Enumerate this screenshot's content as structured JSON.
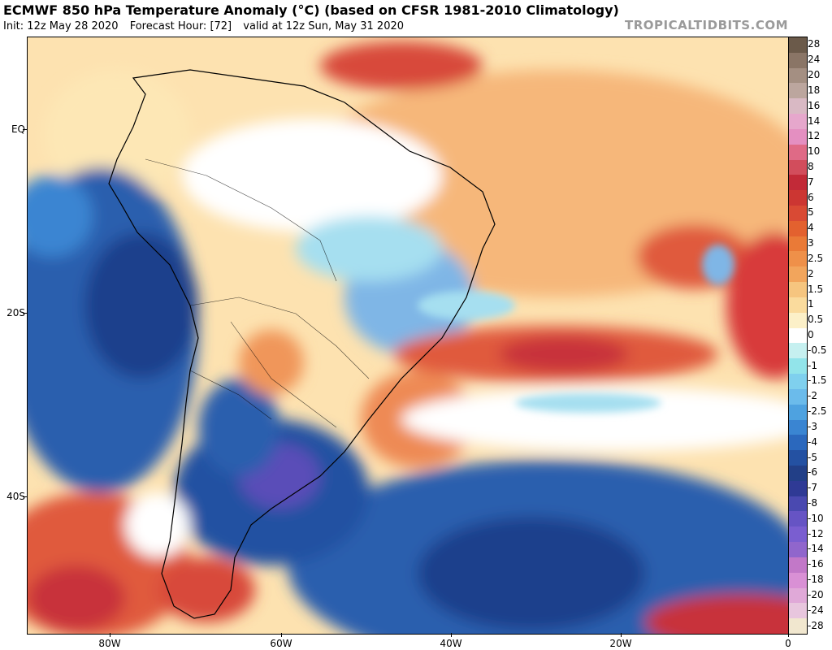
{
  "header": {
    "title": "ECMWF 850 hPa Temperature Anomaly (°C) (based on CFSR 1981-2010 Climatology)",
    "init": "Init: 12z May 28 2020",
    "forecast_hour": "Forecast Hour: [72]",
    "valid": "valid at 12z Sun, May 31 2020",
    "brand": "TROPICALTIDBITS.COM"
  },
  "axes": {
    "lat_labels": [
      "EQ",
      "20S",
      "40S"
    ],
    "lon_labels": [
      "80W",
      "60W",
      "40W",
      "20W",
      "0"
    ]
  },
  "colorbar": {
    "labels": [
      "28",
      "24",
      "20",
      "18",
      "16",
      "14",
      "12",
      "10",
      "8",
      "7",
      "6",
      "5",
      "4",
      "3",
      "2.5",
      "2",
      "1.5",
      "1",
      "0.5",
      "0",
      "-0.5",
      "-1",
      "-1.5",
      "-2",
      "-2.5",
      "-3",
      "-4",
      "-5",
      "-6",
      "-7",
      "-8",
      "-10",
      "-12",
      "-14",
      "-16",
      "-18",
      "-20",
      "-24",
      "-28"
    ],
    "colors": [
      "#6b5a4a",
      "#8a7566",
      "#a48f82",
      "#bca69e",
      "#d9b9c4",
      "#e6a7cc",
      "#e48fc1",
      "#df6a86",
      "#d24d5c",
      "#c22a38",
      "#cc3632",
      "#d94a34",
      "#e3612f",
      "#ea7a37",
      "#ef9049",
      "#f2a55c",
      "#f6c57f",
      "#fadb9d",
      "#fcf0c8",
      "#ffffff",
      "#c6f0f0",
      "#92e4ea",
      "#7fd0ee",
      "#6bbbeb",
      "#4ea2e0",
      "#3a85d2",
      "#2b68bd",
      "#2451a2",
      "#223f87",
      "#2f3a95",
      "#4a49b0",
      "#6654c4",
      "#7a5ed0",
      "#9066cc",
      "#c278c8",
      "#d990d5",
      "#e0a9d8",
      "#e8c6de",
      "#f1e7cf"
    ]
  },
  "palette": {
    "ocean_cold": "#2b5fae",
    "deep_cold": "#1f3f8c",
    "purple": "#5a4eb8",
    "cool": "#7fb6e6",
    "light_cool": "#a6dff0",
    "neutral": "#ffffff",
    "light_warm": "#fde7b5",
    "warm": "#f4a96a",
    "hot": "#e05a3c",
    "very_hot": "#c8303a",
    "border": "#000000"
  }
}
